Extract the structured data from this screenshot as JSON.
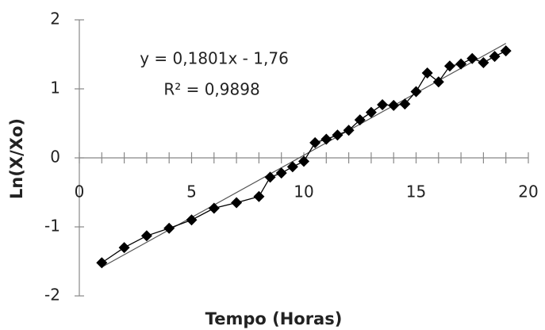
{
  "chart_data": {
    "type": "scatter",
    "x_label": "Tempo (Horas)",
    "y_label": "Ln(X/Xo)",
    "annotations": [
      "y = 0,1801x - 1,76",
      "R² = 0,9898"
    ],
    "series": [
      {
        "color": "#000000",
        "x": [
          1,
          2,
          3,
          4,
          5,
          6,
          7,
          8,
          8.5,
          9,
          9.5,
          10,
          10.5,
          11,
          11.5,
          12,
          12.5,
          13,
          13.5,
          14,
          14.5,
          15,
          15.5,
          16,
          16.5,
          17,
          17.5,
          18,
          18.5,
          19
        ],
        "values": [
          -1.52,
          -1.3,
          -1.13,
          -1.02,
          -0.9,
          -0.73,
          -0.65,
          -0.56,
          -0.28,
          -0.22,
          -0.13,
          -0.05,
          0.22,
          0.27,
          0.33,
          0.4,
          0.55,
          0.66,
          0.77,
          0.76,
          0.78,
          0.96,
          1.23,
          1.1,
          1.33,
          1.36,
          1.44,
          1.38,
          1.47,
          1.55
        ]
      }
    ],
    "trendline": true,
    "xlim": [
      0,
      20
    ],
    "xticks": [
      0,
      5,
      10,
      15,
      20
    ],
    "ylim": [
      -2,
      2
    ],
    "yticks": [
      -2,
      -1,
      0,
      1,
      2
    ]
  }
}
